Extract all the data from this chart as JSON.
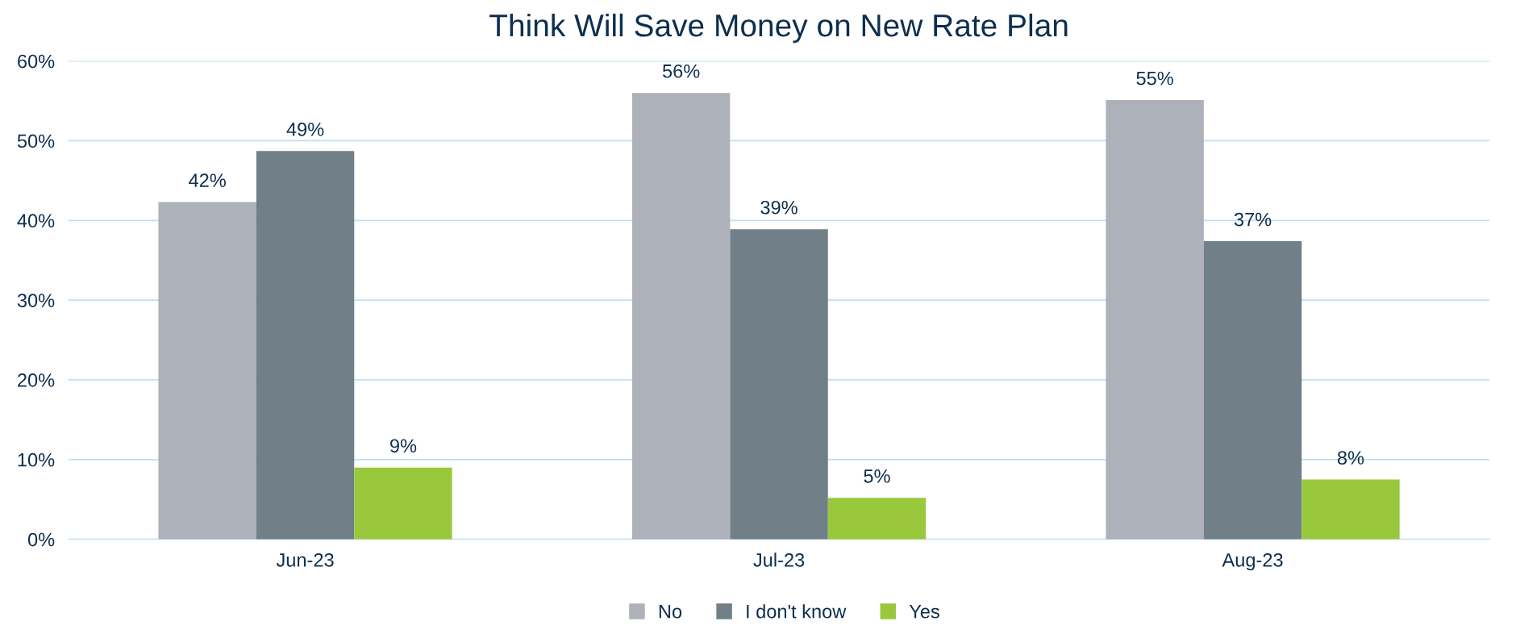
{
  "chart_data": {
    "type": "bar",
    "title": "Think Will Save Money on New Rate Plan",
    "categories": [
      "Jun-23",
      "Jul-23",
      "Aug-23"
    ],
    "series": [
      {
        "name": "No",
        "color": "#adb1b9",
        "values": [
          42.3,
          56,
          55.1
        ],
        "value_labels": [
          "42%",
          "56%",
          "55%"
        ]
      },
      {
        "name": "I don't know",
        "color": "#717f89",
        "values": [
          48.7,
          38.9,
          37.4
        ],
        "value_labels": [
          "49%",
          "39%",
          "37%"
        ]
      },
      {
        "name": "Yes",
        "color": "#99c83d",
        "values": [
          9.0,
          5.2,
          7.5
        ],
        "value_labels": [
          "9%",
          "5%",
          "8%"
        ]
      }
    ],
    "ylim": [
      0,
      60
    ],
    "yticks": [
      {
        "value": 0,
        "label": "0%"
      },
      {
        "value": 10,
        "label": "10%"
      },
      {
        "value": 20,
        "label": "20%"
      },
      {
        "value": 30,
        "label": "30%"
      },
      {
        "value": 40,
        "label": "40%"
      },
      {
        "value": 50,
        "label": "50%"
      },
      {
        "value": 60,
        "label": "60%"
      }
    ],
    "grid": "y",
    "legend": "bottom"
  }
}
